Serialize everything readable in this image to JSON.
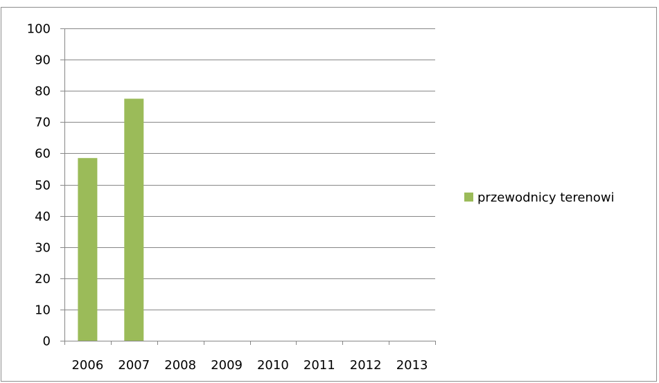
{
  "chart_data": {
    "type": "bar",
    "categories": [
      "2006",
      "2007",
      "2008",
      "2009",
      "2010",
      "2011",
      "2012",
      "2013"
    ],
    "series": [
      {
        "name": "przewodnicy terenowi",
        "color": "#9bbb59",
        "values": [
          58.5,
          77.5,
          null,
          null,
          null,
          null,
          null,
          null
        ]
      }
    ],
    "ylim": [
      0,
      100
    ],
    "yticks": [
      "0",
      "10",
      "20",
      "30",
      "40",
      "50",
      "60",
      "70",
      "80",
      "90",
      "100"
    ],
    "grid": true,
    "legend_position": "right",
    "title": "",
    "xlabel": "",
    "ylabel": ""
  }
}
